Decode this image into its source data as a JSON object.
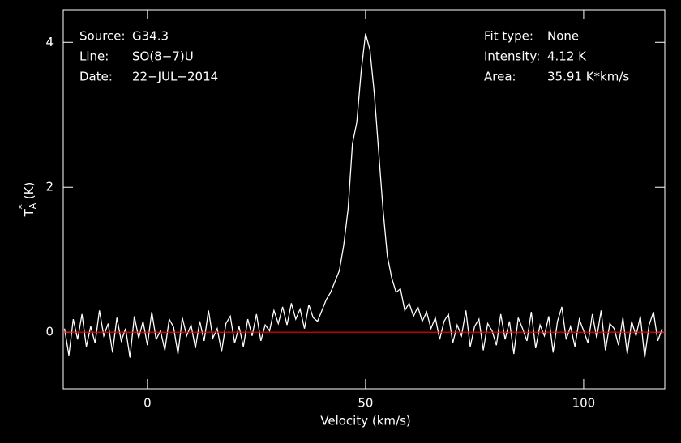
{
  "chart_data": {
    "type": "line",
    "x_label": "Velocity (km/s)",
    "y_label": {
      "base": "T",
      "sub": "A",
      "sup": "*",
      "unit": "(K)"
    },
    "annotations_left": [
      [
        "Source:",
        "G34.3"
      ],
      [
        "Line:",
        "SO(8−7)U"
      ],
      [
        "Date:",
        "22−JUL−2014"
      ]
    ],
    "annotations_right": [
      [
        "Fit type:",
        "None"
      ],
      [
        "Intensity:",
        "4.12 K"
      ],
      [
        "Area:",
        "35.91 K*km/s"
      ]
    ],
    "x": [
      -19,
      -18,
      -17,
      -16,
      -15,
      -14,
      -13,
      -12,
      -11,
      -10,
      -9,
      -8,
      -7,
      -6,
      -5,
      -4,
      -3,
      -2,
      -1,
      0,
      1,
      2,
      3,
      4,
      5,
      6,
      7,
      8,
      9,
      10,
      11,
      12,
      13,
      14,
      15,
      16,
      17,
      18,
      19,
      20,
      21,
      22,
      23,
      24,
      25,
      26,
      27,
      28,
      29,
      30,
      31,
      32,
      33,
      34,
      35,
      36,
      37,
      38,
      39,
      40,
      41,
      42,
      43,
      44,
      45,
      46,
      47,
      48,
      49,
      50,
      51,
      52,
      53,
      54,
      55,
      56,
      57,
      58,
      59,
      60,
      61,
      62,
      63,
      64,
      65,
      66,
      67,
      68,
      69,
      70,
      71,
      72,
      73,
      74,
      75,
      76,
      77,
      78,
      79,
      80,
      81,
      82,
      83,
      84,
      85,
      86,
      87,
      88,
      89,
      90,
      91,
      92,
      93,
      94,
      95,
      96,
      97,
      98,
      99,
      100,
      101,
      102,
      103,
      104,
      105,
      106,
      107,
      108,
      109,
      110,
      111,
      112,
      113,
      114,
      115,
      116,
      117,
      118
    ],
    "series": [
      {
        "color": "#ffffff",
        "values": [
          0.05,
          -0.32,
          0.18,
          -0.1,
          0.25,
          -0.2,
          0.08,
          -0.15,
          0.3,
          -0.05,
          0.12,
          -0.28,
          0.2,
          -0.12,
          0.05,
          -0.35,
          0.22,
          -0.08,
          0.15,
          -0.18,
          0.28,
          -0.1,
          0.02,
          -0.25,
          0.18,
          0.07,
          -0.3,
          0.2,
          -0.05,
          0.1,
          -0.22,
          0.15,
          -0.12,
          0.3,
          -0.08,
          0.05,
          -0.27,
          0.12,
          0.22,
          -0.15,
          0.08,
          -0.2,
          0.18,
          -0.05,
          0.25,
          -0.12,
          0.1,
          0.02,
          0.3,
          0.12,
          0.35,
          0.1,
          0.4,
          0.18,
          0.32,
          0.05,
          0.38,
          0.2,
          0.15,
          0.3,
          0.45,
          0.55,
          0.7,
          0.85,
          1.2,
          1.7,
          2.6,
          2.9,
          3.6,
          4.12,
          3.9,
          3.3,
          2.5,
          1.7,
          1.05,
          0.75,
          0.55,
          0.6,
          0.3,
          0.4,
          0.22,
          0.35,
          0.15,
          0.28,
          0.05,
          0.2,
          -0.1,
          0.15,
          0.25,
          -0.15,
          0.1,
          -0.05,
          0.3,
          -0.2,
          0.08,
          0.18,
          -0.25,
          0.12,
          0.02,
          -0.18,
          0.25,
          -0.1,
          0.15,
          -0.3,
          0.2,
          0.05,
          -0.12,
          0.28,
          -0.22,
          0.1,
          -0.05,
          0.22,
          -0.28,
          0.15,
          0.35,
          -0.1,
          0.08,
          -0.2,
          0.18,
          0.02,
          -0.15,
          0.25,
          -0.08,
          0.3,
          -0.25,
          0.12,
          0.05,
          -0.18,
          0.2,
          -0.3,
          0.15,
          -0.05,
          0.22,
          -0.35,
          0.1,
          0.28,
          -0.12,
          0.05
        ]
      }
    ],
    "baseline_color": "#ff0000",
    "xlim": [
      -19.3,
      118.6
    ],
    "ylim": [
      -0.78,
      4.45
    ],
    "xticks": [
      0,
      50,
      100
    ],
    "yticks": [
      0,
      2,
      4
    ],
    "grid": false
  }
}
